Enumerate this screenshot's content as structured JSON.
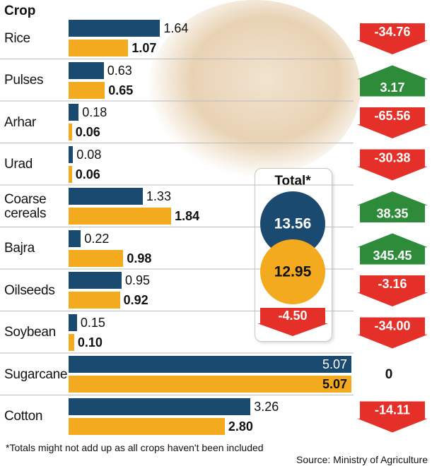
{
  "chart_data": {
    "type": "bar",
    "orientation": "horizontal",
    "axis_title": "Crop",
    "categories": [
      "Rice",
      "Pulses",
      "Arhar",
      "Urad",
      "Coarse cereals",
      "Bajra",
      "Oilseeds",
      "Soybean",
      "Sugarcane",
      "Cotton"
    ],
    "series": [
      {
        "color": "#1b4a70",
        "values": [
          1.64,
          0.63,
          0.18,
          0.08,
          1.33,
          0.22,
          0.95,
          0.15,
          5.07,
          3.26
        ],
        "value_labels": [
          null,
          null,
          null,
          null,
          null,
          null,
          null,
          null,
          null,
          null
        ]
      },
      {
        "color": "#f4aa1e",
        "values": [
          1.07,
          0.65,
          0.06,
          0.06,
          1.84,
          0.98,
          0.92,
          0.1,
          5.07,
          2.8
        ],
        "value_labels": [
          null,
          null,
          null,
          null,
          null,
          null,
          null,
          "0.10",
          null,
          "2.80"
        ]
      }
    ],
    "change": {
      "values": [
        -34.76,
        3.17,
        -65.56,
        -30.38,
        38.35,
        345.45,
        -3.16,
        -34,
        0,
        -14.11
      ],
      "value_labels": [
        null,
        null,
        null,
        null,
        null,
        null,
        null,
        "-34.00",
        null,
        null
      ],
      "up_color": "#2e8b3a",
      "down_color": "#e5302a"
    },
    "total": {
      "title": "Total*",
      "values": [
        13.56,
        12.95
      ],
      "change": -4.5,
      "change_label": "-4.50"
    },
    "footnote": "*Totals might not add up as all crops haven't been included",
    "source": "Source: Ministry of Agriculture"
  }
}
